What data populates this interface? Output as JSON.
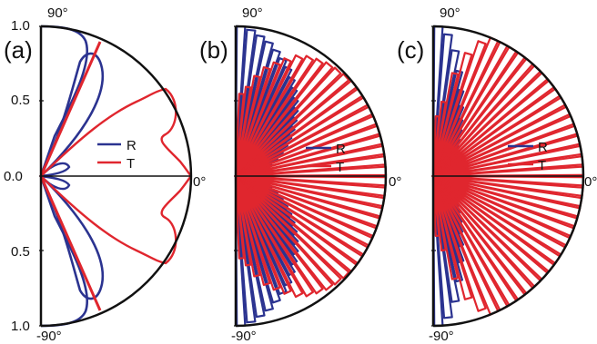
{
  "chart_data": [
    {
      "type": "polar-half",
      "panel_label": "(a)",
      "radial_range": [
        0,
        1.0
      ],
      "radial_ticks": [
        "1.0",
        "0.5",
        "0.0",
        "0.5",
        "1.0"
      ],
      "angle_range_deg": [
        -90,
        90
      ],
      "angle_labels": {
        "top": "90°",
        "zero": "0°",
        "bottom": "-90°"
      },
      "legend": {
        "placement": "center",
        "entries": [
          "R",
          "T"
        ]
      },
      "series": [
        {
          "name": "R",
          "color": "#2b3390",
          "theta_deg": [
            90,
            80,
            72,
            65,
            60,
            55,
            52,
            50,
            48,
            45,
            40,
            35,
            30,
            25,
            20,
            15,
            10,
            6,
            3,
            0
          ],
          "r": [
            1.0,
            0.72,
            0.34,
            0.86,
            0.85,
            0.72,
            0.55,
            0.35,
            0.25,
            0.2,
            0.19,
            0.2,
            0.2,
            0.18,
            0.15,
            0.2,
            0.28,
            0.16,
            0.06,
            0.0
          ]
        },
        {
          "name": "T",
          "color": "#e0262e",
          "theta_deg": [
            90,
            74,
            72,
            70,
            60,
            55,
            52,
            45,
            40,
            35,
            30,
            25,
            20,
            15,
            10,
            5,
            0
          ],
          "r": [
            0.0,
            0.38,
            0.6,
            0.35,
            0.6,
            0.8,
            1.0,
            0.85,
            0.7,
            0.6,
            0.5,
            0.46,
            0.55,
            0.7,
            0.8,
            0.92,
            1.0
          ]
        }
      ]
    },
    {
      "type": "polar-half",
      "panel_label": "(b)",
      "radial_range": [
        0,
        1.0
      ],
      "angle_range_deg": [
        -90,
        90
      ],
      "angle_labels": {
        "top": "90°",
        "zero": "0°",
        "bottom": "-90°"
      },
      "legend": {
        "placement": "center",
        "entries": [
          "R",
          "T"
        ]
      },
      "series": [
        {
          "name": "R",
          "color": "#2b3390",
          "theta_deg": [
            88,
            84,
            80,
            76,
            72,
            68,
            64,
            60,
            56,
            52,
            48,
            44,
            40,
            36,
            32,
            28,
            24,
            20,
            16,
            12,
            8,
            4
          ],
          "r": [
            1.0,
            0.98,
            0.95,
            0.92,
            0.88,
            0.84,
            0.8,
            0.75,
            0.7,
            0.65,
            0.6,
            0.55,
            0.5,
            0.45,
            0.4,
            0.35,
            0.3,
            0.25,
            0.2,
            0.15,
            0.1,
            0.05
          ]
        },
        {
          "name": "T",
          "color": "#e0262e",
          "theta_deg": [
            86,
            82,
            78,
            74,
            70,
            66,
            62,
            58,
            54,
            50,
            46,
            42,
            38,
            34,
            30,
            26,
            22,
            18,
            14,
            10,
            6,
            2
          ],
          "r": [
            0.55,
            0.6,
            0.68,
            0.75,
            0.8,
            0.85,
            0.9,
            0.93,
            0.95,
            0.97,
            0.98,
            0.99,
            1.0,
            1.0,
            1.0,
            1.0,
            1.0,
            1.0,
            1.0,
            1.0,
            1.0,
            1.0
          ]
        }
      ]
    },
    {
      "type": "polar-half",
      "panel_label": "(c)",
      "radial_range": [
        0,
        1.0
      ],
      "angle_range_deg": [
        -90,
        90
      ],
      "angle_labels": {
        "top": "90°",
        "zero": "0°",
        "bottom": "-90°"
      },
      "legend": {
        "placement": "center",
        "entries": [
          "R",
          "T"
        ]
      },
      "series": [
        {
          "name": "R",
          "color": "#2b3390",
          "theta_deg": [
            88,
            84,
            80,
            76,
            72,
            68,
            64,
            60,
            56,
            52,
            48,
            44,
            40,
            36,
            32,
            28,
            24,
            20,
            16,
            12,
            8,
            4
          ],
          "r": [
            1.0,
            0.95,
            0.85,
            0.72,
            0.6,
            0.5,
            0.42,
            0.36,
            0.3,
            0.26,
            0.22,
            0.2,
            0.18,
            0.16,
            0.14,
            0.12,
            0.1,
            0.09,
            0.08,
            0.06,
            0.05,
            0.03
          ]
        },
        {
          "name": "T",
          "color": "#e0262e",
          "theta_deg": [
            86,
            82,
            78,
            74,
            70,
            66,
            62,
            58,
            54,
            50,
            46,
            42,
            38,
            34,
            30,
            26,
            22,
            18,
            14,
            10,
            6,
            2
          ],
          "r": [
            0.4,
            0.5,
            0.7,
            0.85,
            0.95,
            1.0,
            1.0,
            1.0,
            1.0,
            1.0,
            1.0,
            1.0,
            1.0,
            1.0,
            1.0,
            1.0,
            1.0,
            1.0,
            1.0,
            1.0,
            1.0,
            1.0
          ]
        }
      ]
    }
  ]
}
